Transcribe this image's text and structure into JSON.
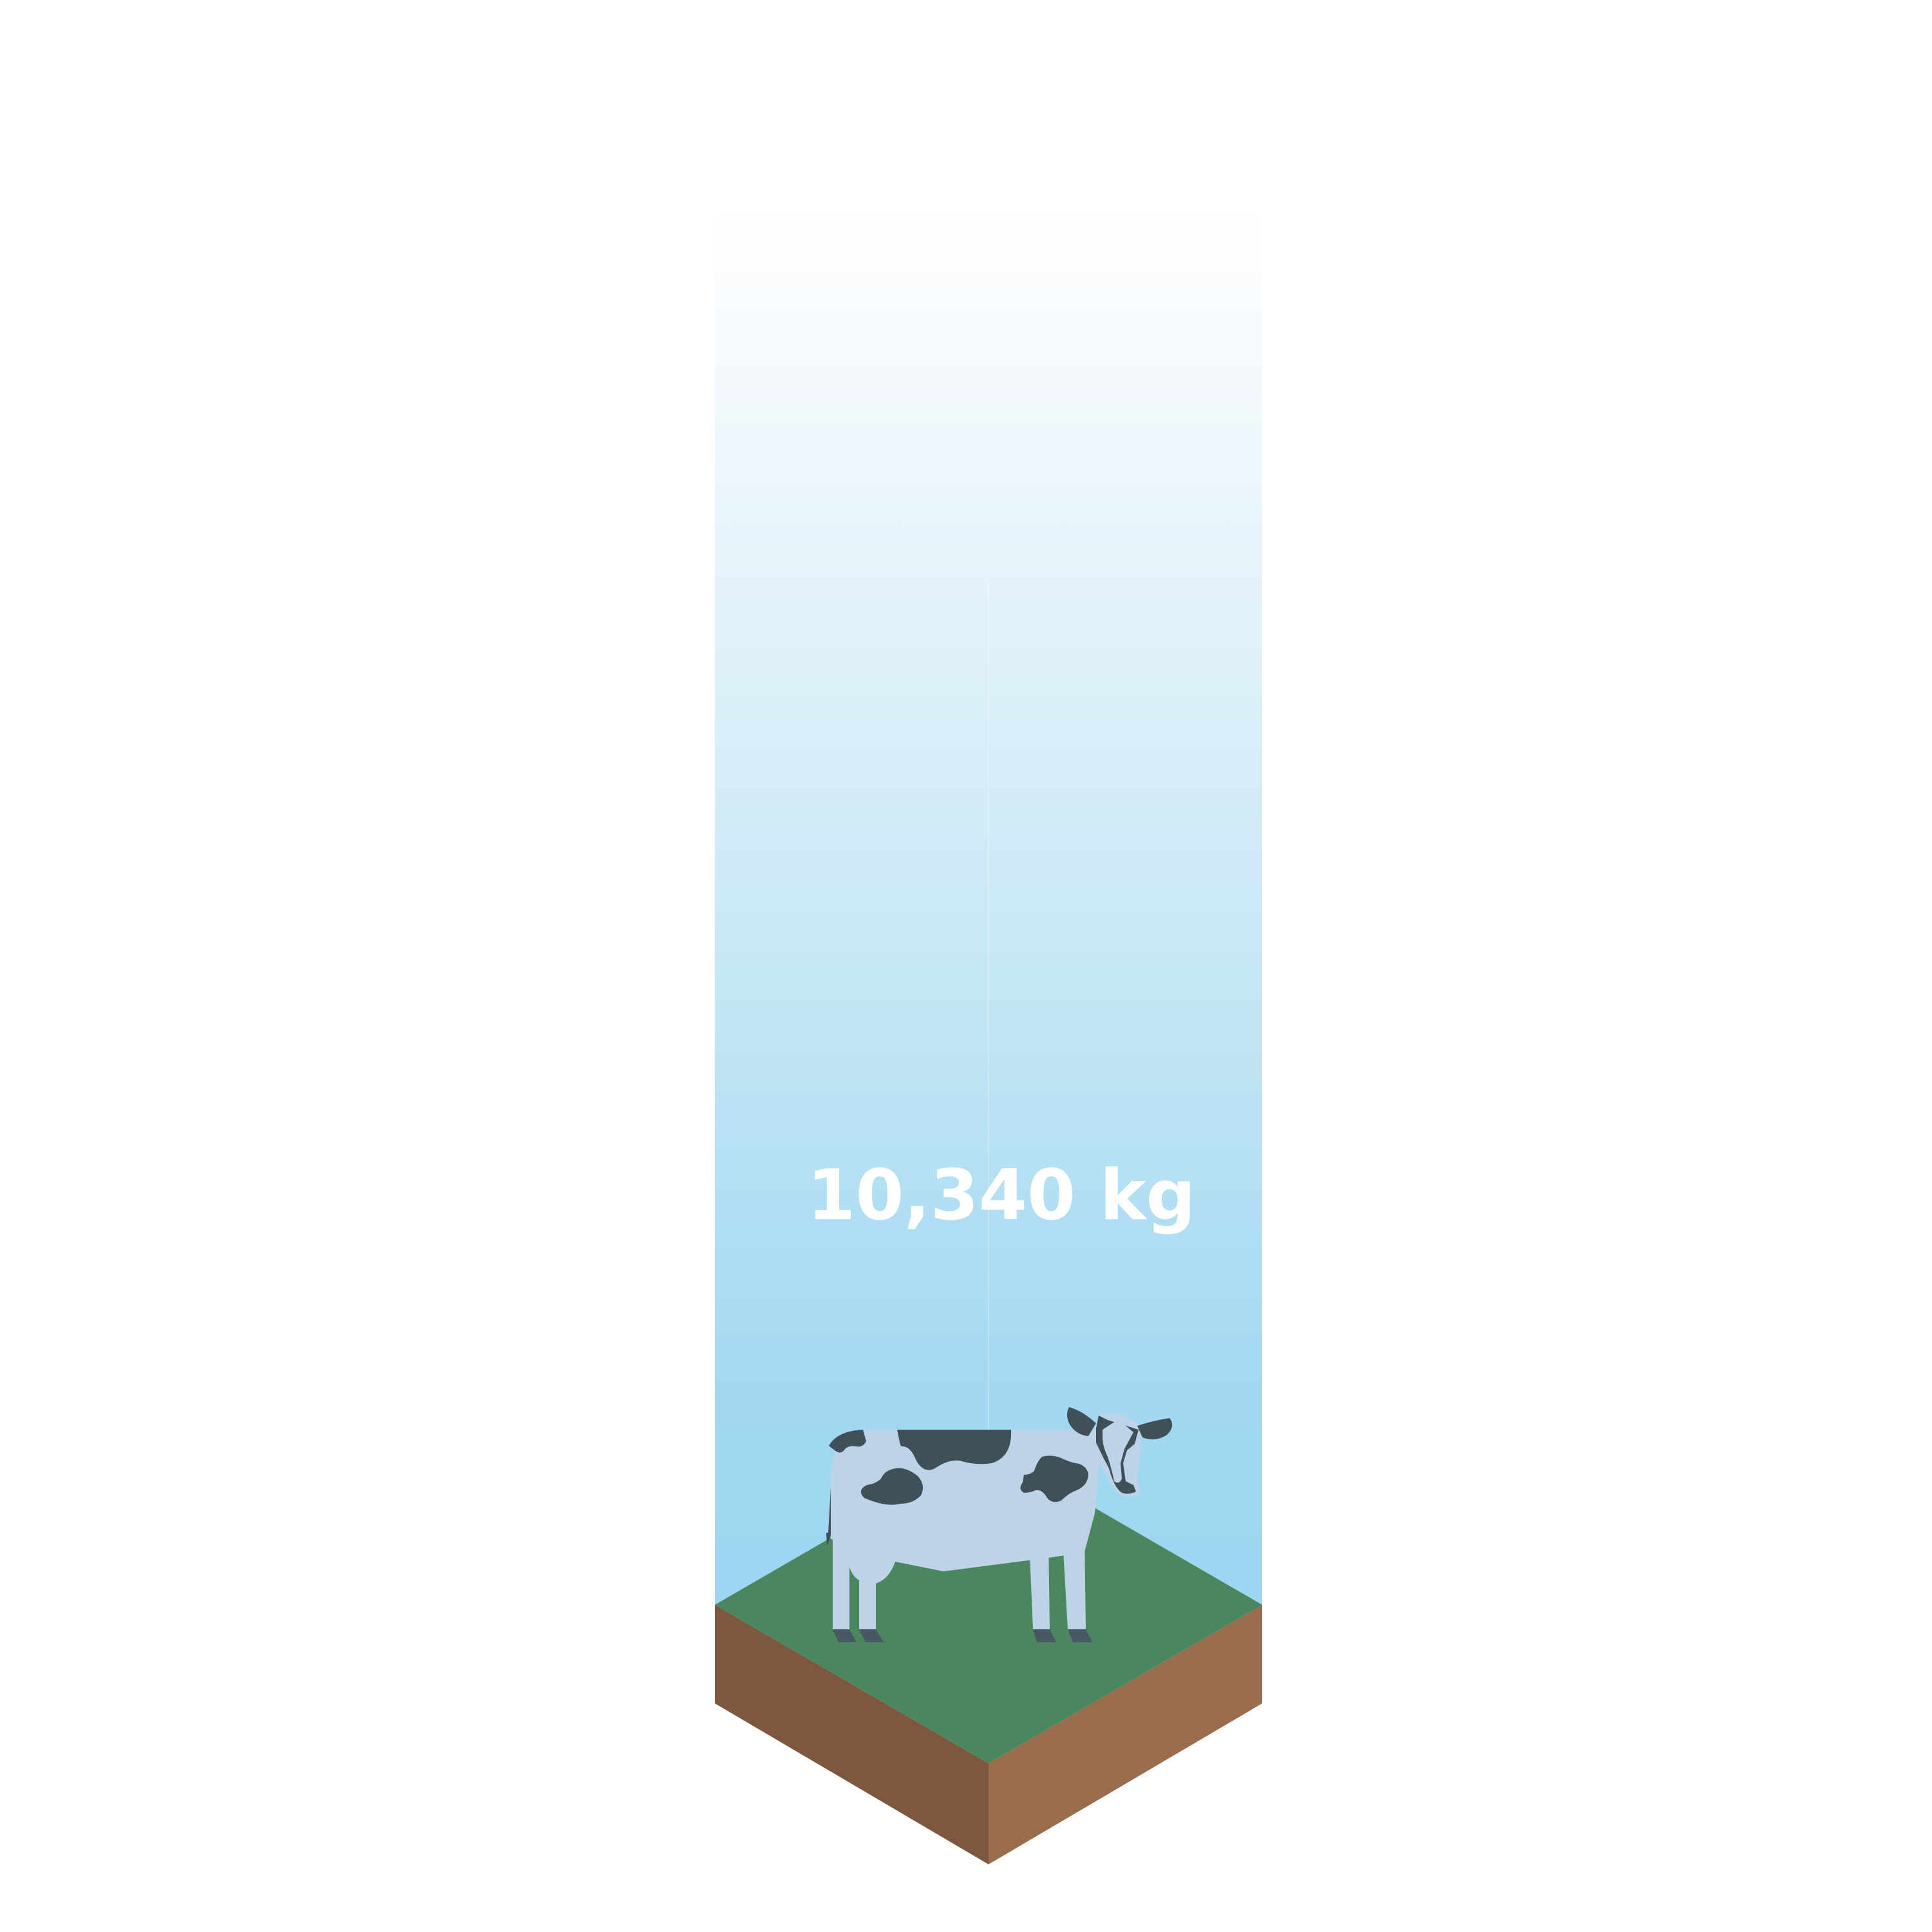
{
  "measurement": {
    "value_text": "10,340 kg"
  },
  "subject": {
    "icon": "cow-icon"
  },
  "colors": {
    "sky_top": "#ffffff",
    "sky_bottom": "#9dd6f1",
    "grass": "#4a865e",
    "soil_left": "#7d573e",
    "soil_right": "#9a6c4e",
    "cow_body": "#bdd3e7",
    "cow_spots": "#3f5058",
    "cow_hooves": "#485764"
  }
}
